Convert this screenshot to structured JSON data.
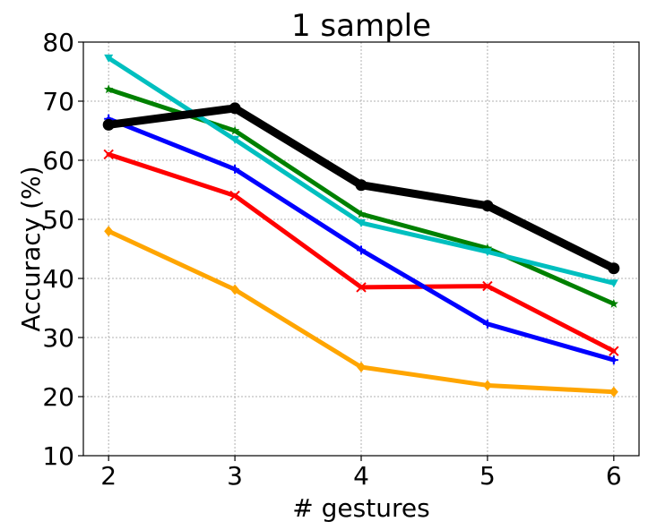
{
  "chart_data": {
    "type": "line",
    "title": "1 sample",
    "xlabel": "# gestures",
    "ylabel": "Accuracy (%)",
    "x": [
      2,
      3,
      4,
      5,
      6
    ],
    "xlim": [
      1.8,
      6.2
    ],
    "ylim": [
      10,
      80
    ],
    "xticks": [
      "2",
      "3",
      "4",
      "5",
      "6"
    ],
    "yticks": [
      "10",
      "20",
      "30",
      "40",
      "50",
      "60",
      "70",
      "80"
    ],
    "grid": true,
    "series": [
      {
        "color": "#ffa500",
        "marker": "diamond",
        "width": 5,
        "values": [
          48.0,
          38.1,
          25.0,
          21.9,
          20.8
        ]
      },
      {
        "color": "#ff0000",
        "marker": "x",
        "width": 5,
        "values": [
          61.0,
          54.0,
          38.5,
          38.7,
          27.7
        ]
      },
      {
        "color": "#0000ff",
        "marker": "plus",
        "width": 5,
        "values": [
          67.0,
          58.5,
          44.8,
          32.3,
          26.2
        ]
      },
      {
        "color": "#008000",
        "marker": "star",
        "width": 5,
        "values": [
          72.0,
          65.0,
          50.9,
          45.1,
          35.7
        ]
      },
      {
        "color": "#00bfbf",
        "marker": "triangle-down",
        "width": 5,
        "values": [
          77.3,
          63.5,
          49.4,
          44.5,
          39.2
        ]
      },
      {
        "color": "#000000",
        "marker": "circle",
        "width": 9,
        "values": [
          66.0,
          68.8,
          55.8,
          52.3,
          41.7
        ]
      }
    ]
  }
}
